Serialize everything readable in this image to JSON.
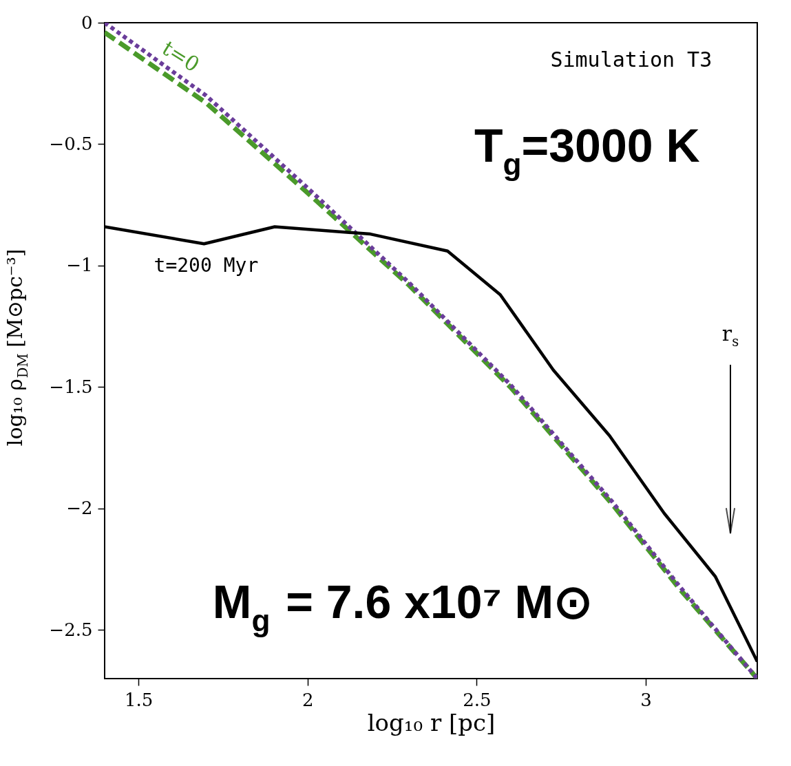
{
  "chart_data": {
    "type": "line",
    "xlabel": "log₁₀ r [pc]",
    "ylabel": "log₁₀ ρ$_{DM}$ [M⊙pc⁻³]",
    "xlim": [
      1.4,
      3.33
    ],
    "xticks": [
      1.5,
      2,
      2.5,
      3
    ],
    "ylim": [
      -2.7,
      0
    ],
    "yticks": [
      0,
      -0.5,
      -1,
      -1.5,
      -2,
      -2.5
    ],
    "grid": false,
    "series": [
      {
        "color": "#4a9a2a",
        "line_style": "dashed",
        "x": [
          1.4,
          1.7,
          2.0,
          2.3,
          2.6,
          2.9,
          3.1,
          3.33
        ],
        "values": [
          -0.04,
          -0.33,
          -0.7,
          -1.08,
          -1.5,
          -1.98,
          -2.33,
          -2.7
        ]
      },
      {
        "color": "#6a3d9a",
        "line_style": "dotted",
        "x": [
          1.4,
          1.7,
          2.0,
          2.3,
          2.6,
          2.9,
          3.1,
          3.33
        ],
        "values": [
          0.0,
          -0.3,
          -0.68,
          -1.07,
          -1.49,
          -1.97,
          -2.32,
          -2.7
        ]
      },
      {
        "color": "#000000",
        "line_style": "solid",
        "x": [
          1.4,
          1.694,
          1.903,
          2.186,
          2.414,
          2.57,
          2.727,
          2.893,
          3.055,
          3.206,
          3.33
        ],
        "values": [
          -0.84,
          -0.91,
          -0.84,
          -0.87,
          -0.94,
          -1.12,
          -1.43,
          -1.7,
          -2.02,
          -2.28,
          -2.63
        ]
      }
    ],
    "annotations": [
      "Simulation T3",
      "T$_{g}$=3000 K",
      "M$_{g}$ = 7.6 x10⁷ M⊙",
      "t=0",
      "t=200 Myr",
      "r$_{s}$"
    ]
  }
}
